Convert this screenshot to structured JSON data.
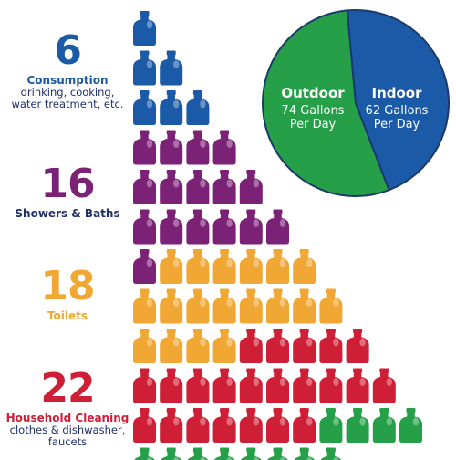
{
  "chart_data": [
    {
      "type": "pictograph",
      "unit": "gallon jug",
      "categories": [
        {
          "value": "6",
          "label": "Consumption",
          "sub": "drinking, cooking, water treatment, etc.",
          "color": "#1a5aa6",
          "count": 6
        },
        {
          "value": "16",
          "label": "Showers & Baths",
          "sub": "",
          "color": "#7b2277",
          "count": 16
        },
        {
          "value": "18",
          "label": "Toilets",
          "sub": "",
          "color": "#f0a733",
          "count": 18
        },
        {
          "value": "22",
          "label": "Household Cleaning",
          "sub": "clothes & dishwasher, faucets",
          "color": "#cf1f36",
          "count": 22
        },
        {
          "value": "",
          "label": "",
          "sub": "",
          "color": "#26a048",
          "count": 12
        }
      ]
    },
    {
      "type": "pie",
      "slices": [
        {
          "name": "Outdoor",
          "value": 74,
          "text": "74 Gallons Per Day",
          "color": "#26a048"
        },
        {
          "name": "Indoor",
          "value": 62,
          "text": "62 Gallons Per Day",
          "color": "#1a5aa6"
        }
      ]
    }
  ],
  "pie": {
    "outdoor": {
      "title": "Outdoor",
      "line1": "74 Gallons",
      "line2": "Per Day"
    },
    "indoor": {
      "title": "Indoor",
      "line1": "62 Gallons",
      "line2": "Per Day"
    }
  },
  "labels": {
    "c1": {
      "num": "6",
      "lbl": "Consumption",
      "sub1": "drinking, cooking,",
      "sub2": "water treatment, etc."
    },
    "c2": {
      "num": "16",
      "lbl": "Showers & Baths"
    },
    "c3": {
      "num": "18",
      "lbl": "Toilets"
    },
    "c4": {
      "num": "22",
      "lbl": "Household Cleaning",
      "sub1": "clothes & dishwasher,",
      "sub2": "faucets"
    }
  }
}
